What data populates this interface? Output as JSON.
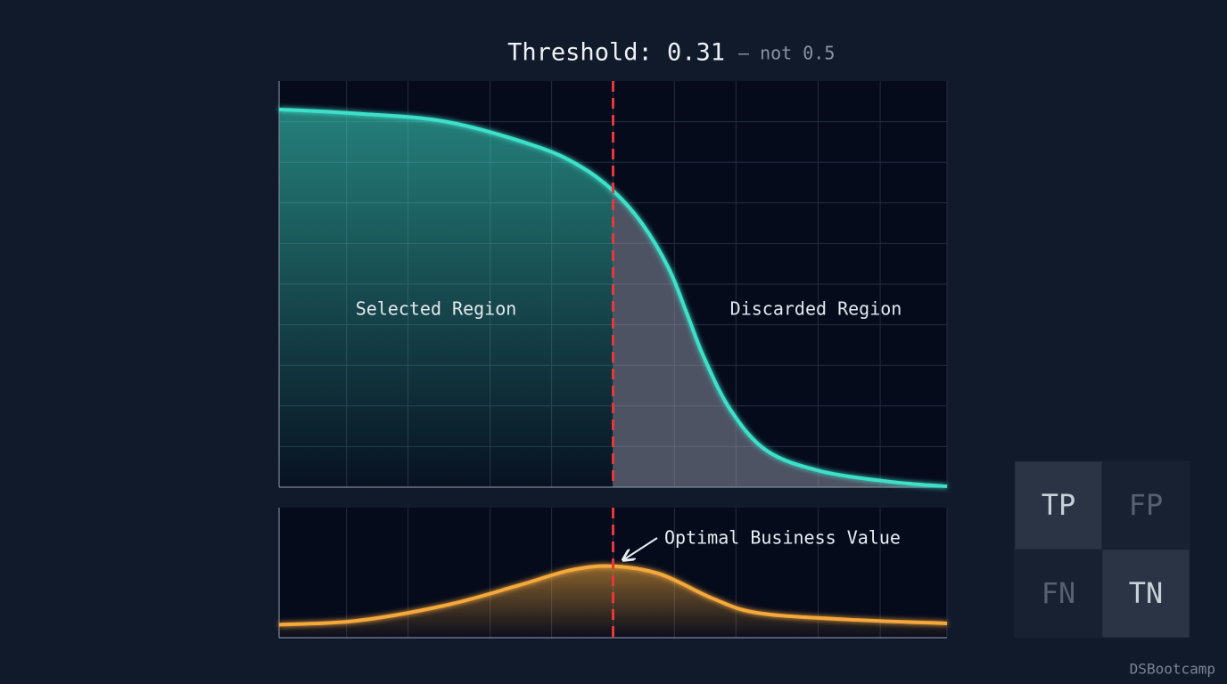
{
  "chart_data": [
    {
      "type": "area",
      "title": "Threshold: 0.31",
      "subtitle": "— not 0.5",
      "annotation_left": "Selected Region",
      "annotation_right": "Discarded Region",
      "x": [
        0,
        0.116,
        0.25,
        0.384,
        0.451,
        0.5,
        0.543,
        0.583,
        0.61,
        0.636,
        0.676,
        0.73,
        0.81,
        0.917,
        1
      ],
      "values": [
        0.93,
        0.92,
        0.9,
        0.84,
        0.79,
        0.73,
        0.65,
        0.54,
        0.43,
        0.32,
        0.19,
        0.09,
        0.04,
        0.013,
        0.002
      ],
      "color": "#3ee0c8",
      "xlim": [
        0,
        1
      ],
      "ylim": [
        0,
        1
      ],
      "threshold_x": 0.5,
      "grid": true
    },
    {
      "type": "area",
      "annotation": "Optimal Business Value",
      "x": [
        0,
        0.116,
        0.25,
        0.357,
        0.437,
        0.5,
        0.57,
        0.65,
        0.717,
        0.85,
        1
      ],
      "values": [
        0.1,
        0.13,
        0.25,
        0.4,
        0.52,
        0.55,
        0.49,
        0.3,
        0.19,
        0.14,
        0.11
      ],
      "color": "#f5a83a",
      "xlim": [
        0,
        1
      ],
      "ylim": [
        0,
        1
      ],
      "threshold_x": 0.5,
      "grid": true
    }
  ],
  "confusion_matrix": {
    "cells": [
      "TP",
      "FP",
      "FN",
      "TN"
    ]
  },
  "footer": "DSBootcamp"
}
